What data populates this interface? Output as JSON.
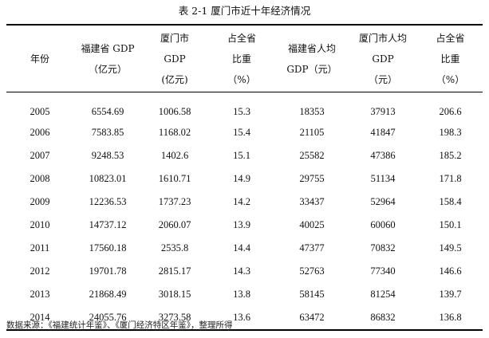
{
  "caption": "表 2-1  厦门市近十年经济情况",
  "headers": [
    {
      "lines": [
        "年份"
      ]
    },
    {
      "lines": [
        "福建省 GDP",
        "（亿元）"
      ]
    },
    {
      "lines": [
        "厦门市",
        "GDP",
        "(亿元)"
      ]
    },
    {
      "lines": [
        "占全省",
        "比重",
        "（%）"
      ]
    },
    {
      "lines": [
        "福建省人均",
        "GDP（元）"
      ]
    },
    {
      "lines": [
        "厦门市人均",
        "GDP",
        "（元）"
      ]
    },
    {
      "lines": [
        "占全省",
        "比重",
        "（%）"
      ]
    }
  ],
  "rows": [
    [
      "2005",
      "6554.69",
      "1006.58",
      "15.3",
      "18353",
      "37913",
      "206.6"
    ],
    [
      "2006",
      "7583.85",
      "1168.02",
      "15.4",
      "21105",
      "41847",
      "198.3"
    ],
    [
      "2007",
      "9248.53",
      "1402.6",
      "15.1",
      "25582",
      "47386",
      "185.2"
    ],
    [
      "2008",
      "10823.01",
      "1610.71",
      "14.9",
      "29755",
      "51134",
      "171.8"
    ],
    [
      "2009",
      "12236.53",
      "1737.23",
      "14.2",
      "33437",
      "52964",
      "158.4"
    ],
    [
      "2010",
      "14737.12",
      "2060.07",
      "13.9",
      "40025",
      "60060",
      "150.1"
    ],
    [
      "2011",
      "17560.18",
      "2535.8",
      "14.4",
      "47377",
      "70832",
      "149.5"
    ],
    [
      "2012",
      "19701.78",
      "2815.17",
      "14.3",
      "52763",
      "77340",
      "146.6"
    ],
    [
      "2013",
      "21868.49",
      "3018.15",
      "13.8",
      "58145",
      "81254",
      "139.7"
    ],
    [
      "2014",
      "24055.76",
      "3273.58",
      "13.6",
      "63472",
      "86832",
      "136.8"
    ]
  ],
  "source_note": "数据来源：《福建统计年鉴》、《厦门经济特区年鉴》，整理所得"
}
